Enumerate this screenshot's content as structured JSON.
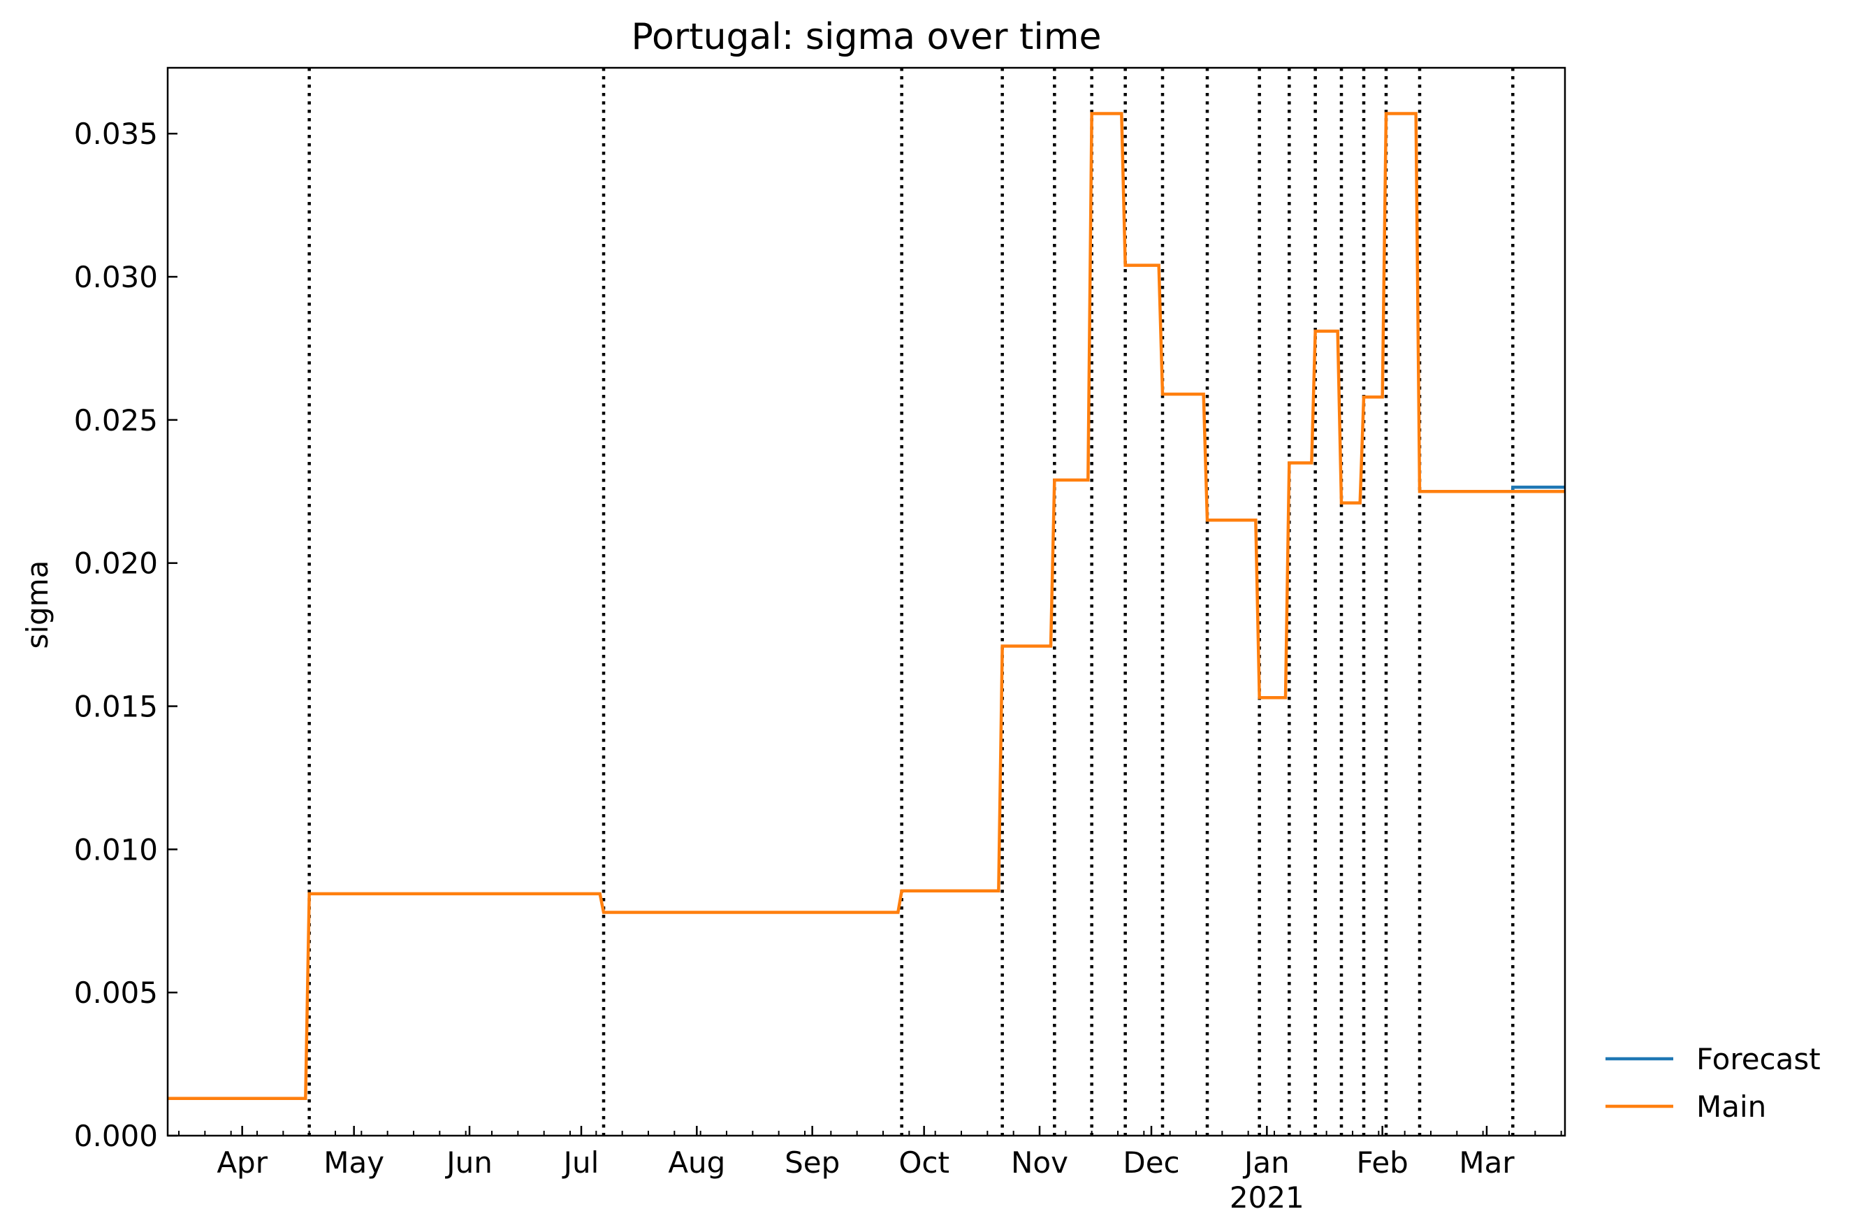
{
  "chart_data": {
    "type": "line",
    "title": "Portugal: sigma over time",
    "xlabel": "",
    "ylabel": "sigma",
    "xlim": [
      "2020-03-12",
      "2021-03-22"
    ],
    "ylim": [
      0,
      0.0373
    ],
    "yticks": [
      0.0,
      0.005,
      0.01,
      0.015,
      0.02,
      0.025,
      0.03,
      0.035
    ],
    "ytick_labels": [
      "0.000",
      "0.005",
      "0.010",
      "0.015",
      "0.020",
      "0.025",
      "0.030",
      "0.035"
    ],
    "xticks": [
      "2020-04-01",
      "2020-05-01",
      "2020-06-01",
      "2020-07-01",
      "2020-08-01",
      "2020-09-01",
      "2020-10-01",
      "2020-11-01",
      "2020-12-01",
      "2021-01-01",
      "2021-02-01",
      "2021-03-01"
    ],
    "xtick_labels": [
      "Apr",
      "May",
      "Jun",
      "Jul",
      "Aug",
      "Sep",
      "Oct",
      "Nov",
      "Dec",
      "Jan",
      "Feb",
      "Mar"
    ],
    "xtick_year_label": "2021",
    "breakpoints": [
      "2020-04-19",
      "2020-07-07",
      "2020-09-25",
      "2020-10-22",
      "2020-11-05",
      "2020-11-15",
      "2020-11-24",
      "2020-12-04",
      "2020-12-16",
      "2020-12-30",
      "2021-01-07",
      "2021-01-14",
      "2021-01-21",
      "2021-01-27",
      "2021-02-02",
      "2021-02-11",
      "2021-03-08"
    ],
    "series": [
      {
        "name": "Forecast",
        "color": "#1f77b4",
        "points": [
          [
            "2021-03-08",
            0.0225
          ],
          [
            "2021-03-08",
            0.02265
          ],
          [
            "2021-03-22",
            0.02265
          ]
        ]
      },
      {
        "name": "Main",
        "color": "#ff7f0e",
        "points": [
          [
            "2020-03-12",
            0.0013
          ],
          [
            "2020-04-18",
            0.0013
          ],
          [
            "2020-04-19",
            0.00845
          ],
          [
            "2020-07-06",
            0.00845
          ],
          [
            "2020-07-07",
            0.0078
          ],
          [
            "2020-09-24",
            0.0078
          ],
          [
            "2020-09-25",
            0.00855
          ],
          [
            "2020-10-21",
            0.00855
          ],
          [
            "2020-10-22",
            0.0171
          ],
          [
            "2020-11-04",
            0.0171
          ],
          [
            "2020-11-05",
            0.0229
          ],
          [
            "2020-11-14",
            0.0229
          ],
          [
            "2020-11-15",
            0.0357
          ],
          [
            "2020-11-23",
            0.0357
          ],
          [
            "2020-11-24",
            0.0304
          ],
          [
            "2020-12-03",
            0.0304
          ],
          [
            "2020-12-04",
            0.0259
          ],
          [
            "2020-12-15",
            0.0259
          ],
          [
            "2020-12-16",
            0.0215
          ],
          [
            "2020-12-29",
            0.0215
          ],
          [
            "2020-12-30",
            0.0153
          ],
          [
            "2021-01-06",
            0.0153
          ],
          [
            "2021-01-07",
            0.0235
          ],
          [
            "2021-01-13",
            0.0235
          ],
          [
            "2021-01-14",
            0.0281
          ],
          [
            "2021-01-20",
            0.0281
          ],
          [
            "2021-01-21",
            0.0221
          ],
          [
            "2021-01-26",
            0.0221
          ],
          [
            "2021-01-27",
            0.0258
          ],
          [
            "2021-02-01",
            0.0258
          ],
          [
            "2021-02-02",
            0.0357
          ],
          [
            "2021-02-10",
            0.0357
          ],
          [
            "2021-02-11",
            0.0225
          ],
          [
            "2021-03-22",
            0.0225
          ]
        ]
      }
    ],
    "legend": {
      "placement": "outside-right-bottom",
      "entries": [
        {
          "label": "Forecast",
          "color": "#1f77b4"
        },
        {
          "label": "Main",
          "color": "#ff7f0e"
        }
      ]
    },
    "grid": false
  }
}
